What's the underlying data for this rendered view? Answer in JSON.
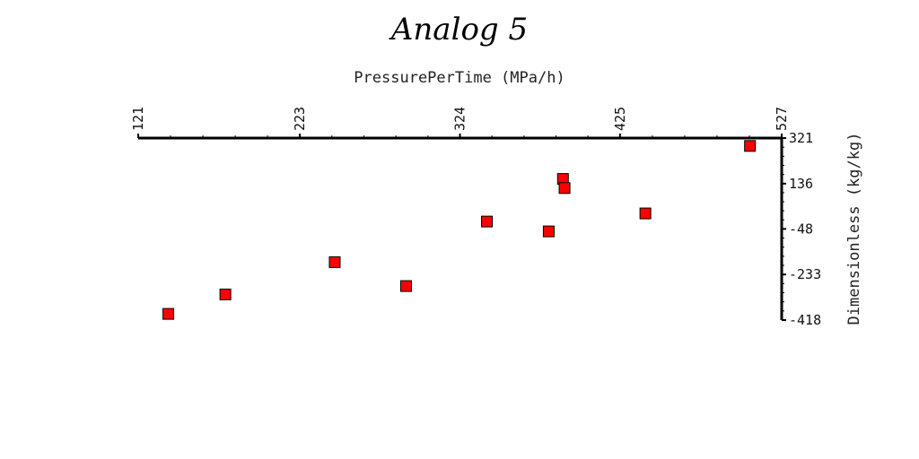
{
  "colors": {
    "marker": "#ff0000",
    "marker_edge": "#000000",
    "axis": "#000000",
    "background": "#ffffff"
  },
  "chart_data": {
    "type": "scatter",
    "title": "Analog 5",
    "xlabel": "PressurePerTime (MPa/h)",
    "ylabel": "Dimensionless (kg/kg)",
    "x_axis_position": "top",
    "y_axis_position": "right",
    "xlim": [
      121,
      527
    ],
    "ylim": [
      -418,
      321
    ],
    "x_ticks": [
      121,
      223,
      324,
      425,
      527
    ],
    "x_tick_labels": [
      "121",
      "223",
      "324",
      "425",
      "527"
    ],
    "y_ticks": [
      321,
      136,
      -48,
      -233,
      -418
    ],
    "y_tick_labels": [
      "321",
      "136",
      "-48",
      "-233",
      "-418"
    ],
    "grid": false,
    "legend": "none",
    "marker": "square",
    "points": [
      {
        "x": 140,
        "y": -393
      },
      {
        "x": 176,
        "y": -314
      },
      {
        "x": 245,
        "y": -183
      },
      {
        "x": 290,
        "y": -280
      },
      {
        "x": 341,
        "y": -18
      },
      {
        "x": 380,
        "y": -58
      },
      {
        "x": 389,
        "y": 155
      },
      {
        "x": 390,
        "y": 118
      },
      {
        "x": 441,
        "y": 15
      },
      {
        "x": 507,
        "y": 289
      }
    ]
  }
}
